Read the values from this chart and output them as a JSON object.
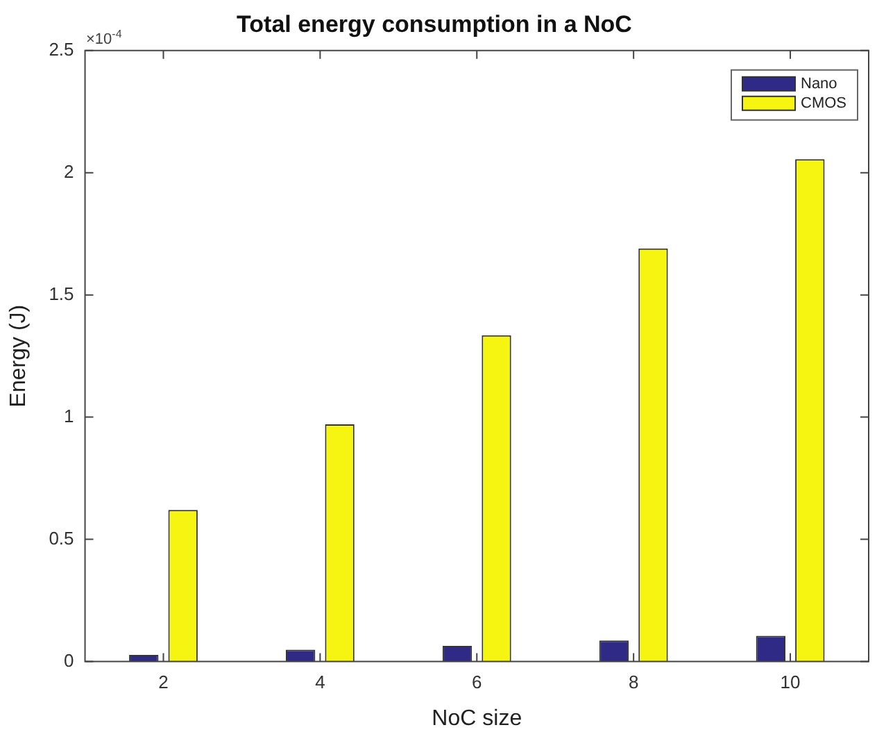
{
  "chart_data": {
    "type": "bar",
    "title": "Total energy consumption in a NoC",
    "xlabel": "NoC size",
    "ylabel": "Energy (J)",
    "annotations": [
      "×10$^{-4}$"
    ],
    "categories": [
      "2",
      "4",
      "6",
      "8",
      "10"
    ],
    "series": [
      {
        "name": "Nano",
        "color": "#2e2a85",
        "values": [
          0.027,
          0.048,
          0.064,
          0.086,
          0.105
        ]
      },
      {
        "name": "CMOS",
        "color": "#f5f511",
        "values": [
          0.62,
          0.97,
          1.335,
          1.69,
          2.055
        ]
      }
    ],
    "ylim": [
      0,
      2.5
    ],
    "yticks": [
      0,
      0.5,
      1,
      1.5,
      2,
      2.5
    ],
    "grid": false,
    "legend": "top right"
  }
}
